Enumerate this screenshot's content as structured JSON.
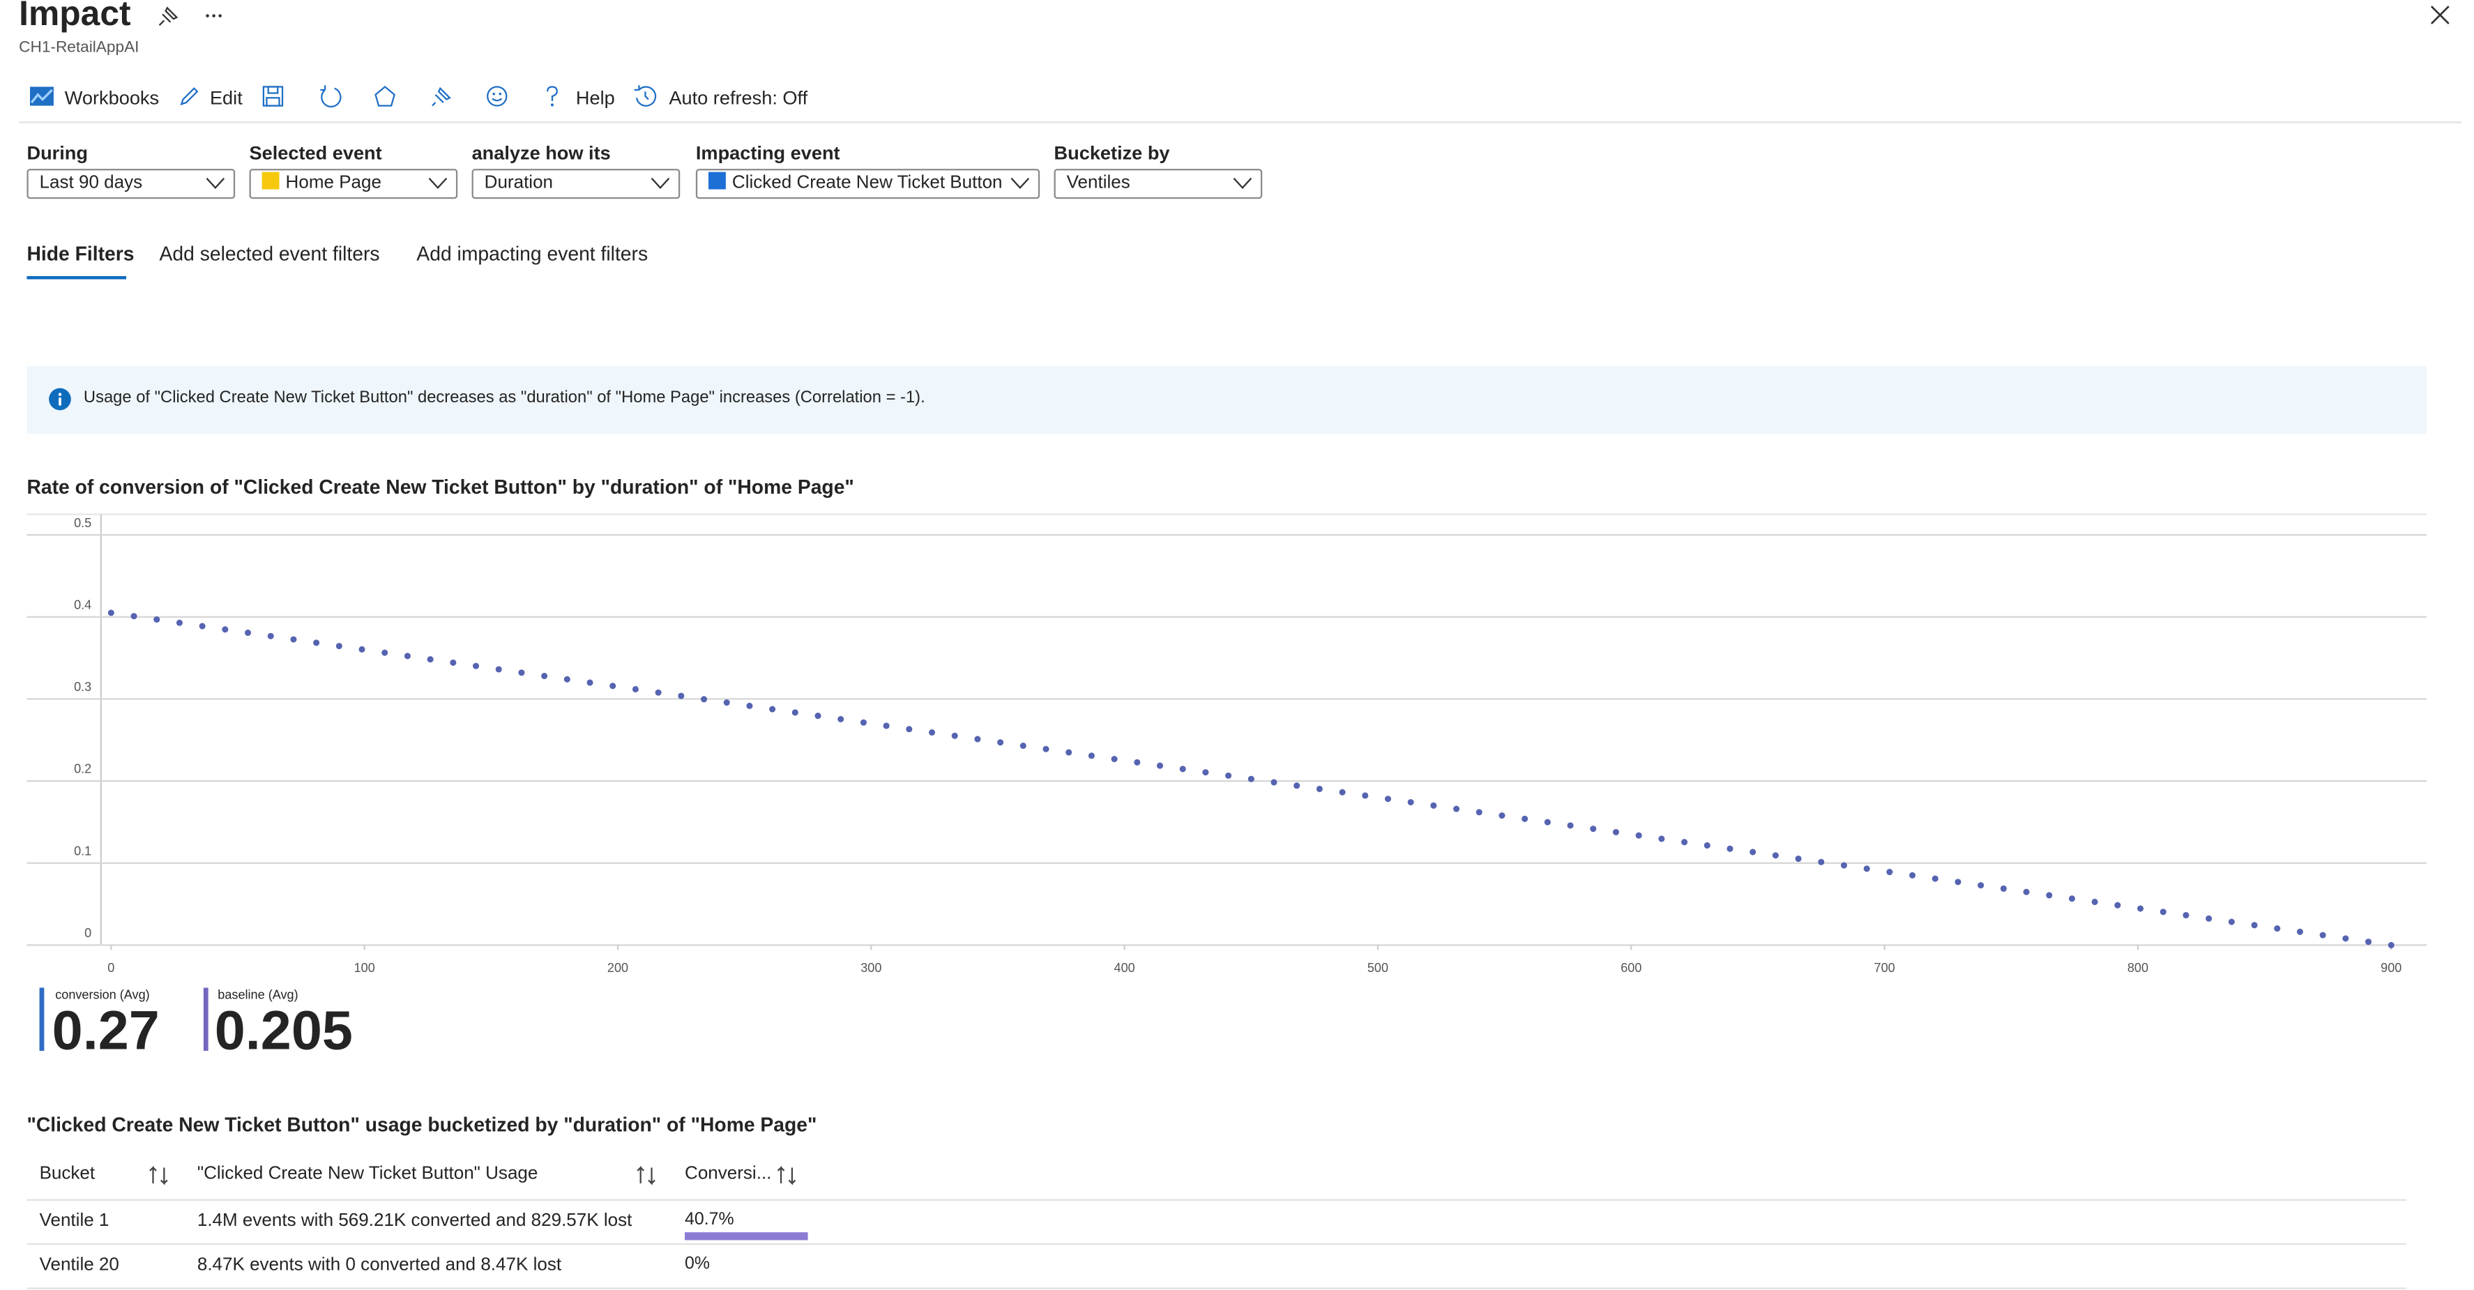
{
  "header": {
    "title": "Impact",
    "subtitle": "CH1-RetailAppAI"
  },
  "toolbar": [
    "Workbooks",
    "Edit",
    "Help",
    "Auto refresh: Off"
  ],
  "filters": [
    {
      "label": "During",
      "value": "Last 90 days"
    },
    {
      "label": "Selected event",
      "value": "Home Page"
    },
    {
      "label": "analyze how its",
      "value": "Duration"
    },
    {
      "label": "Impacting event",
      "value": "Clicked Create New Ticket Button"
    },
    {
      "label": "Bucketize by",
      "value": "Ventiles"
    }
  ],
  "tabs": [
    "Hide Filters",
    "Add selected event filters",
    "Add impacting event filters"
  ],
  "info": "Usage of \"Clicked Create New Ticket Button\" decreases as \"duration\" of \"Home Page\" increases (Correlation = -1).",
  "chart_data": {
    "type": "scatter",
    "title": "Rate of conversion of \"Clicked Create New Ticket Button\" by \"duration\" of \"Home Page\"",
    "x": [
      0,
      9,
      18,
      27,
      36,
      45,
      54,
      63,
      72,
      81,
      90,
      99,
      108,
      117,
      126,
      135,
      144,
      153,
      162,
      171,
      180,
      189,
      198,
      207,
      216,
      225,
      234,
      243,
      252,
      261,
      270,
      279,
      288,
      297,
      306,
      315,
      324,
      333,
      342,
      351,
      360,
      369,
      378,
      387,
      396,
      405,
      414,
      423,
      432,
      441,
      450,
      459,
      468,
      477,
      486,
      495,
      504,
      513,
      522,
      531,
      540,
      549,
      558,
      567,
      576,
      585,
      594,
      603,
      612,
      621,
      630,
      639,
      648,
      657,
      666,
      675,
      684,
      693,
      702,
      711,
      720,
      729,
      738,
      747,
      756,
      765,
      774,
      783,
      792,
      801,
      810,
      819,
      828,
      837,
      846,
      855,
      864,
      873,
      882,
      891,
      900
    ],
    "values": [
      0.405,
      0.40095,
      0.3969,
      0.39285,
      0.3888,
      0.38475,
      0.3807,
      0.37665,
      0.3726,
      0.36855,
      0.3645,
      0.36045,
      0.3564,
      0.35235,
      0.3483,
      0.34425,
      0.3402,
      0.33615,
      0.3321,
      0.32805,
      0.324,
      0.31995,
      0.3159,
      0.31185,
      0.3078,
      0.30375,
      0.2997,
      0.29565,
      0.2916,
      0.28755,
      0.2835,
      0.27945,
      0.2754,
      0.27135,
      0.2673,
      0.26325,
      0.2592,
      0.25515,
      0.2511,
      0.24705,
      0.243,
      0.23895,
      0.2349,
      0.23085,
      0.2268,
      0.22275,
      0.2187,
      0.21465,
      0.2106,
      0.20655,
      0.2025,
      0.19845,
      0.1944,
      0.19035,
      0.1863,
      0.18225,
      0.1782,
      0.17415,
      0.1701,
      0.16605,
      0.162,
      0.15795,
      0.1539,
      0.14985,
      0.1458,
      0.14175,
      0.1377,
      0.13365,
      0.1296,
      0.12555,
      0.1215,
      0.11745,
      0.1134,
      0.10935,
      0.1053,
      0.10125,
      0.0972,
      0.09315,
      0.0891,
      0.08505,
      0.081,
      0.07695,
      0.0729,
      0.06885,
      0.0648,
      0.06075,
      0.0567,
      0.05265,
      0.0486,
      0.04455,
      0.0405,
      0.03645,
      0.0324,
      0.02835,
      0.0243,
      0.02025,
      0.0162,
      0.01215,
      0.0081,
      0.00405,
      0
    ],
    "color": "#5563b0",
    "xlim": [
      -4,
      914
    ],
    "xticks": [
      0,
      100,
      200,
      300,
      400,
      500,
      600,
      700,
      800,
      900
    ],
    "ylim": [
      0,
      0.5
    ],
    "yticks": [
      0,
      0.1,
      0.2,
      0.3,
      0.4,
      0.5
    ],
    "grid": true
  },
  "metrics": [
    {
      "label": "conversion (Avg)",
      "value": 0.27,
      "color": "#2f6bc4"
    },
    {
      "label": "baseline (Avg)",
      "value": 0.205,
      "color": "#7467c0"
    }
  ],
  "table": {
    "title": "\"Clicked Create New Ticket Button\" usage bucketized by \"duration\" of \"Home Page\"",
    "columns": [
      "Bucket",
      "\"Clicked Create New Ticket Button\" Usage",
      "Conversi..."
    ],
    "rows": [
      [
        "Ventile 1",
        "1.4M events with 569.21K converted and 829.57K lost",
        {
          "value": 40.7,
          "label": "40.7%"
        }
      ],
      [
        "Ventile 20",
        "8.47K events with 0 converted and 8.47K lost",
        {
          "value": 0,
          "label": "0%"
        }
      ]
    ]
  }
}
